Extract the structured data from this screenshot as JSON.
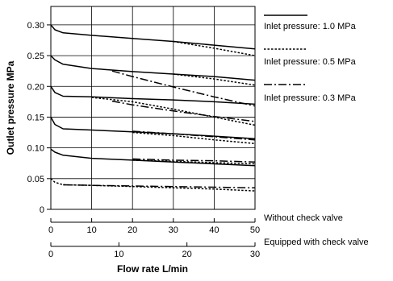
{
  "chart_data": {
    "type": "line",
    "xlabel": "Flow rate L/min",
    "ylabel": "Outlet pressure MPa",
    "ylim": [
      0,
      0.33
    ],
    "yticks": [
      "0",
      "0.05",
      "0.10",
      "0.15",
      "0.20",
      "0.25",
      "0.30"
    ],
    "x_axes": [
      {
        "label": "Without check valve",
        "min": 0,
        "max": 50,
        "ticks": [
          "0",
          "10",
          "20",
          "30",
          "40",
          "50"
        ]
      },
      {
        "label": "Equipped with check valve",
        "min": 0,
        "max": 30,
        "ticks": [
          "0",
          "10",
          "20",
          "30"
        ]
      }
    ],
    "grid": true,
    "legend": [
      {
        "label": "Inlet pressure: 1.0 MPa",
        "style": "solid"
      },
      {
        "label": "Inlet pressure: 0.5 MPa",
        "style": "dotted"
      },
      {
        "label": "Inlet pressure: 0.3 MPa",
        "style": "dashdot"
      }
    ],
    "series": [
      {
        "inlet": "1.0",
        "set": "0.30",
        "style": "solid",
        "x": [
          0,
          1,
          3,
          10,
          20,
          30,
          40,
          50
        ],
        "y": [
          0.3,
          0.292,
          0.287,
          0.283,
          0.278,
          0.273,
          0.267,
          0.261
        ]
      },
      {
        "inlet": "0.5",
        "set": "0.30",
        "style": "dotted",
        "x": [
          30,
          40,
          50
        ],
        "y": [
          0.273,
          0.262,
          0.25
        ]
      },
      {
        "inlet": "1.0",
        "set": "0.25",
        "style": "solid",
        "x": [
          0,
          1,
          3,
          10,
          20,
          30,
          40,
          50
        ],
        "y": [
          0.25,
          0.243,
          0.236,
          0.229,
          0.224,
          0.22,
          0.216,
          0.21
        ]
      },
      {
        "inlet": "0.5",
        "set": "0.25",
        "style": "dotted",
        "x": [
          30,
          40,
          50
        ],
        "y": [
          0.22,
          0.212,
          0.202
        ]
      },
      {
        "inlet": "0.3",
        "set": "0.25",
        "style": "dashdot",
        "x": [
          15,
          20,
          30,
          40,
          50
        ],
        "y": [
          0.225,
          0.216,
          0.199,
          0.183,
          0.168
        ]
      },
      {
        "inlet": "1.0",
        "set": "0.20",
        "style": "solid",
        "x": [
          0,
          1,
          3,
          10,
          20,
          30,
          40,
          50
        ],
        "y": [
          0.2,
          0.19,
          0.184,
          0.183,
          0.18,
          0.178,
          0.175,
          0.171
        ]
      },
      {
        "inlet": "0.5",
        "set": "0.20",
        "style": "dotted",
        "x": [
          10,
          20,
          30,
          40,
          50
        ],
        "y": [
          0.182,
          0.175,
          0.163,
          0.15,
          0.137
        ]
      },
      {
        "inlet": "0.3",
        "set": "0.20",
        "style": "dashdot",
        "x": [
          15,
          20,
          30,
          40,
          50
        ],
        "y": [
          0.176,
          0.17,
          0.16,
          0.151,
          0.143
        ]
      },
      {
        "inlet": "1.0",
        "set": "0.15",
        "style": "solid",
        "x": [
          0,
          1,
          3,
          10,
          20,
          30,
          40,
          50
        ],
        "y": [
          0.15,
          0.138,
          0.131,
          0.129,
          0.126,
          0.123,
          0.119,
          0.115
        ]
      },
      {
        "inlet": "0.5",
        "set": "0.15",
        "style": "dotted",
        "x": [
          20,
          30,
          40,
          50
        ],
        "y": [
          0.125,
          0.12,
          0.113,
          0.107
        ]
      },
      {
        "inlet": "0.3",
        "set": "0.15",
        "style": "dashdot",
        "x": [
          20,
          30,
          40,
          50
        ],
        "y": [
          0.127,
          0.123,
          0.118,
          0.113
        ]
      },
      {
        "inlet": "1.0",
        "set": "0.10",
        "style": "solid",
        "x": [
          0,
          1,
          3,
          10,
          20,
          30,
          40,
          50
        ],
        "y": [
          0.098,
          0.093,
          0.088,
          0.083,
          0.08,
          0.077,
          0.074,
          0.071
        ]
      },
      {
        "inlet": "0.5",
        "set": "0.10",
        "style": "dotted",
        "x": [
          20,
          30,
          40,
          50
        ],
        "y": [
          0.08,
          0.078,
          0.076,
          0.074
        ]
      },
      {
        "inlet": "0.3",
        "set": "0.10",
        "style": "dashdot",
        "x": [
          20,
          30,
          40,
          50
        ],
        "y": [
          0.082,
          0.08,
          0.079,
          0.077
        ]
      },
      {
        "inlet": "0.5",
        "set": "0.05",
        "style": "dotted",
        "x": [
          0,
          1,
          3,
          10,
          20,
          30,
          40,
          50
        ],
        "y": [
          0.05,
          0.044,
          0.04,
          0.039,
          0.037,
          0.035,
          0.033,
          0.03
        ]
      },
      {
        "inlet": "0.3",
        "set": "0.05",
        "style": "dashdot",
        "x": [
          3,
          10,
          20,
          30,
          40,
          50
        ],
        "y": [
          0.04,
          0.039,
          0.038,
          0.037,
          0.036,
          0.035
        ]
      }
    ]
  }
}
